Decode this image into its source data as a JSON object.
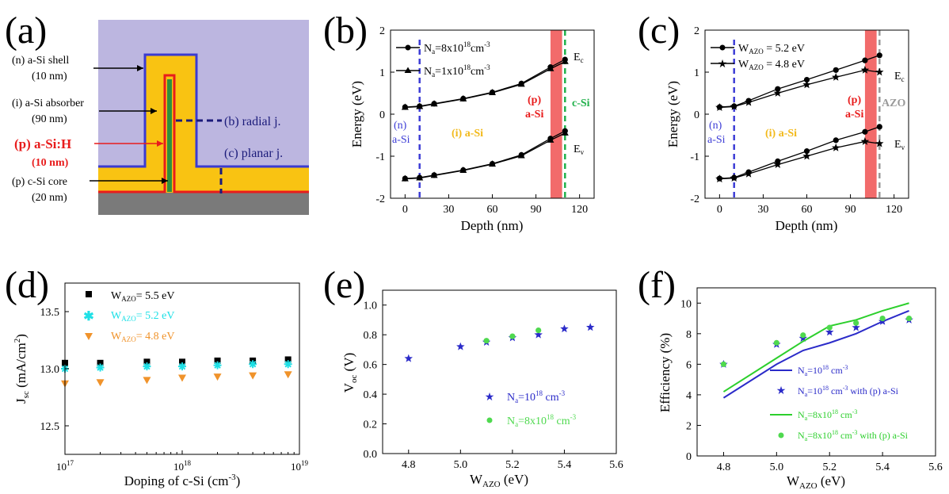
{
  "panels": {
    "a": {
      "label": "(a)",
      "texts": {
        "shell": "(n) a-Si shell",
        "shell_thk": "(10 nm)",
        "absorber": "(i) a-Si absorber",
        "absorber_thk": "(90 nm)",
        "pasi": "(p) a-Si:H",
        "pasi_thk": "(10 nm)",
        "core": "(p) c-Si core",
        "core_thk": "(20 nm)",
        "radial": "(b) radial j.",
        "planar": "(c) planar j."
      },
      "colors": {
        "shell": "#bcb6e0",
        "absorber": "#f9c312",
        "pasi": "#e81c1c",
        "core": "#2f8f3f",
        "substrate": "#7a7a7a",
        "outline": "#3b3bd1"
      }
    },
    "b": {
      "label": "(b)"
    },
    "c": {
      "label": "(c)"
    },
    "d": {
      "label": "(d)"
    },
    "e": {
      "label": "(e)"
    },
    "f": {
      "label": "(f)"
    }
  },
  "chart_data": [
    {
      "panel": "b",
      "type": "line",
      "xlabel": "Depth (nm)",
      "ylabel": "Energy (eV)",
      "xlim": [
        -10,
        130
      ],
      "ylim": [
        -2,
        2
      ],
      "xticks": [
        0,
        30,
        60,
        90,
        120
      ],
      "yticks": [
        -2,
        -1,
        0,
        1,
        2
      ],
      "series": [
        {
          "name": "Na=8x10^18 cm^-3",
          "marker": "circle",
          "x": [
            0,
            10,
            20,
            40,
            60,
            80,
            100,
            110
          ],
          "y_c": [
            0.17,
            0.19,
            0.25,
            0.37,
            0.52,
            0.73,
            1.12,
            1.3
          ],
          "y_v": [
            -1.53,
            -1.51,
            -1.45,
            -1.33,
            -1.18,
            -0.97,
            -0.58,
            -0.4
          ]
        },
        {
          "name": "Na=1x10^18 cm^-3",
          "marker": "triangle",
          "x": [
            0,
            10,
            20,
            40,
            60,
            80,
            100,
            110
          ],
          "y_c": [
            0.16,
            0.18,
            0.24,
            0.36,
            0.51,
            0.71,
            1.08,
            1.25
          ],
          "y_v": [
            -1.54,
            -1.52,
            -1.46,
            -1.34,
            -1.19,
            -0.99,
            -0.62,
            -0.45
          ]
        }
      ],
      "legend": {
        "l1": {
          "base": "N",
          "sub": "a",
          "mid": "=8x10",
          "sup": "18",
          "unit": "cm",
          "unitsup": "-3"
        },
        "l2": {
          "base": "N",
          "sub": "a",
          "mid": "=1x10",
          "sup": "18",
          "unit": "cm",
          "unitsup": "-3"
        }
      },
      "annotations": {
        "n_label": "(n)",
        "n_label2": "a-Si",
        "i_label": "(i) a-Si",
        "p_label": "(p)",
        "p_label2": "a-Si",
        "right_label": "c-Si",
        "ec": "E",
        "ec_sub": "c",
        "ev": "E",
        "ev_sub": "v"
      },
      "regions": {
        "dashed_left_x": 10,
        "band_x": [
          100,
          108
        ],
        "dashed_right_x": 110
      },
      "colors": {
        "left_dash": "#3d3dd6",
        "band": "#f26b6b",
        "right_dash": "#22b14c",
        "n_text": "#3d3dd6",
        "i_text": "#f2b91a",
        "p_text": "#e81c1c",
        "right_text": "#22b14c"
      }
    },
    {
      "panel": "c",
      "type": "line",
      "xlabel": "Depth (nm)",
      "ylabel": "Energy (eV)",
      "xlim": [
        -10,
        130
      ],
      "ylim": [
        -2,
        2
      ],
      "xticks": [
        0,
        30,
        60,
        90,
        120
      ],
      "yticks": [
        -2,
        -1,
        0,
        1,
        2
      ],
      "series": [
        {
          "name": "WAZO = 5.2 eV",
          "marker": "circle",
          "x": [
            0,
            10,
            20,
            40,
            60,
            80,
            100,
            110
          ],
          "y_c": [
            0.17,
            0.19,
            0.32,
            0.6,
            0.82,
            1.05,
            1.28,
            1.4
          ],
          "y_v": [
            -1.53,
            -1.51,
            -1.38,
            -1.12,
            -0.88,
            -0.62,
            -0.42,
            -0.3
          ]
        },
        {
          "name": "WAZO = 4.8 eV",
          "marker": "star",
          "x": [
            0,
            10,
            20,
            40,
            60,
            80,
            100,
            110
          ],
          "y_c": [
            0.16,
            0.18,
            0.28,
            0.5,
            0.7,
            0.88,
            1.05,
            1.0
          ],
          "y_v": [
            -1.54,
            -1.52,
            -1.42,
            -1.2,
            -1.0,
            -0.8,
            -0.65,
            -0.7
          ]
        }
      ],
      "legend": {
        "l1": {
          "base": "W",
          "sub": "AZO",
          "rest": " = 5.2 eV"
        },
        "l2": {
          "base": "W",
          "sub": "AZO",
          "rest": " = 4.8 eV"
        }
      },
      "annotations": {
        "n_label": "(n)",
        "n_label2": "a-Si",
        "i_label": "(i) a-Si",
        "p_label": "(p)",
        "p_label2": "a-Si",
        "right_label": "AZO",
        "ec": "E",
        "ec_sub": "c",
        "ev": "E",
        "ev_sub": "v"
      },
      "regions": {
        "dashed_left_x": 10,
        "band_x": [
          100,
          108
        ],
        "dashed_right_x": 110
      },
      "colors": {
        "left_dash": "#3d3dd6",
        "band": "#f26b6b",
        "right_dash": "#9a9a9a",
        "n_text": "#3d3dd6",
        "i_text": "#f2b91a",
        "p_text": "#e81c1c",
        "right_text": "#9a9a9a"
      }
    },
    {
      "panel": "d",
      "type": "scatter",
      "xlabel": "Doping of c-Si (cm",
      "xlabel_sup": "-3",
      "xlabel_end": ")",
      "ylabel_base": "J",
      "ylabel_sub": "sc",
      "ylabel_rest": " (mA/cm",
      "ylabel_sup": "2",
      "ylabel_end": ")",
      "xscale": "log",
      "xlim": [
        1e+17,
        1e+19
      ],
      "ylim": [
        12.25,
        13.75
      ],
      "yticks": [
        12.5,
        13.0,
        13.5
      ],
      "xtick_labels": [
        {
          "base": "10",
          "sup": "17"
        },
        {
          "base": "10",
          "sup": "18"
        },
        {
          "base": "10",
          "sup": "19"
        }
      ],
      "series": [
        {
          "name": "WAZO = 5.5 eV",
          "marker": "square",
          "color": "#000000",
          "x": [
            1e+17,
            2e+17,
            5e+17,
            1e+18,
            2e+18,
            4e+18,
            8e+18
          ],
          "values": [
            13.05,
            13.05,
            13.06,
            13.06,
            13.07,
            13.07,
            13.08
          ]
        },
        {
          "name": "WAZO = 5.2 eV",
          "marker": "asterisk",
          "color": "#1ee0e6",
          "x": [
            1e+17,
            2e+17,
            5e+17,
            1e+18,
            2e+18,
            4e+18,
            8e+18
          ],
          "values": [
            13.0,
            13.01,
            13.02,
            13.02,
            13.03,
            13.04,
            13.04
          ]
        },
        {
          "name": "WAZO = 4.8 eV",
          "marker": "triangle-down",
          "color": "#f0932b",
          "x": [
            1e+17,
            2e+17,
            5e+17,
            1e+18,
            2e+18,
            4e+18,
            8e+18
          ],
          "values": [
            12.87,
            12.88,
            12.9,
            12.92,
            12.93,
            12.94,
            12.95
          ]
        }
      ],
      "legend": {
        "l1": {
          "base": "W",
          "sub": "AZO",
          "rest": "= 5.5 eV"
        },
        "l2": {
          "base": "W",
          "sub": "AZO",
          "rest": "= 5.2 eV"
        },
        "l3": {
          "base": "W",
          "sub": "AZO",
          "rest": "= 4.8 eV"
        }
      }
    },
    {
      "panel": "e",
      "type": "scatter",
      "xlabel_base": "W",
      "xlabel_sub": "AZO",
      "xlabel_rest": " (eV)",
      "ylabel_base": "V",
      "ylabel_sub": "oc",
      "ylabel_rest": " (V)",
      "xlim": [
        4.7,
        5.6
      ],
      "ylim": [
        0,
        1.1
      ],
      "xticks": [
        4.8,
        5.0,
        5.2,
        5.4,
        5.6
      ],
      "yticks": [
        0.0,
        0.2,
        0.4,
        0.6,
        0.8,
        1.0
      ],
      "series": [
        {
          "name": "Na=10^18 cm^-3",
          "marker": "star",
          "color": "#2b2bc9",
          "x": [
            4.8,
            5.0,
            5.1,
            5.2,
            5.3,
            5.4,
            5.5
          ],
          "values": [
            0.64,
            0.72,
            0.75,
            0.78,
            0.8,
            0.84,
            0.85
          ]
        },
        {
          "name": "Na=8x10^18 cm^-3",
          "marker": "circle",
          "color": "#4fd94f",
          "x": [
            5.1,
            5.2,
            5.3
          ],
          "values": [
            0.76,
            0.79,
            0.83
          ]
        }
      ],
      "legend": {
        "l1": {
          "base": "N",
          "sub": "a",
          "mid": "=10",
          "sup": "18",
          "unit": " cm",
          "unitsup": "-3"
        },
        "l2": {
          "base": "N",
          "sub": "a",
          "mid": "=8x10",
          "sup": "18",
          "unit": " cm",
          "unitsup": "-3"
        }
      }
    },
    {
      "panel": "f",
      "type": "line",
      "xlabel_base": "W",
      "xlabel_sub": "AZO",
      "xlabel_rest": " (eV)",
      "ylabel": "Efficiency (%)",
      "xlim": [
        4.7,
        5.6
      ],
      "ylim": [
        0,
        11
      ],
      "xticks": [
        4.8,
        5.0,
        5.2,
        5.4,
        5.6
      ],
      "yticks": [
        0,
        2,
        4,
        6,
        8,
        10
      ],
      "series": [
        {
          "name": "Na=10^18 cm^-3",
          "kind": "line",
          "color": "#2b2bc9",
          "x": [
            4.8,
            5.0,
            5.1,
            5.2,
            5.3,
            5.4,
            5.5
          ],
          "values": [
            3.8,
            6.0,
            6.9,
            7.4,
            8.0,
            8.8,
            9.5
          ]
        },
        {
          "name": "Na=10^18 cm^-3 with (p) a-Si",
          "kind": "marker",
          "marker": "star",
          "color": "#2b2bc9",
          "x": [
            4.8,
            5.0,
            5.1,
            5.2,
            5.3,
            5.4,
            5.5
          ],
          "values": [
            6.0,
            7.3,
            7.7,
            8.1,
            8.4,
            8.8,
            8.9
          ]
        },
        {
          "name": "Na=8x10^18 cm^-3",
          "kind": "line",
          "color": "#2ccf2c",
          "x": [
            4.8,
            5.0,
            5.1,
            5.2,
            5.3,
            5.4,
            5.5
          ],
          "values": [
            4.2,
            6.4,
            7.5,
            8.5,
            8.9,
            9.5,
            10.0
          ]
        },
        {
          "name": "Na=8x10^18 cm^-3 with (p) a-Si",
          "kind": "marker",
          "marker": "circle",
          "color": "#4fd94f",
          "x": [
            4.8,
            5.0,
            5.1,
            5.2,
            5.3,
            5.4,
            5.5
          ],
          "values": [
            6.0,
            7.4,
            7.9,
            8.4,
            8.7,
            9.0,
            9.0
          ]
        }
      ],
      "legend": {
        "l1": {
          "base": "N",
          "sub": "a",
          "mid": "=10",
          "sup": "18",
          "unit": " cm",
          "unitsup": "-3",
          "tail": ""
        },
        "l2": {
          "base": "N",
          "sub": "a",
          "mid": "=10",
          "sup": "18",
          "unit": " cm",
          "unitsup": "-3",
          "tail": " with (p) a-Si"
        },
        "l3": {
          "base": "N",
          "sub": "a",
          "mid": "=8x10",
          "sup": "18",
          "unit": " cm",
          "unitsup": "-3",
          "tail": ""
        },
        "l4": {
          "base": "N",
          "sub": "a",
          "mid": "=8x10",
          "sup": "18",
          "unit": " cm",
          "unitsup": "-3",
          "tail": " with (p) a-Si"
        }
      }
    }
  ]
}
